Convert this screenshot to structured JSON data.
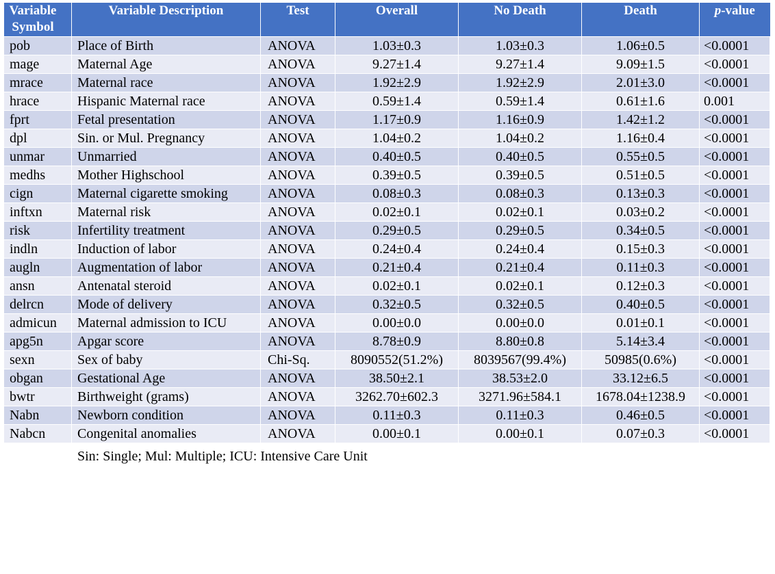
{
  "table": {
    "headers": {
      "symbol_line1": "Variable",
      "symbol_line2": "Symbol",
      "description": "Variable Description",
      "test": "Test",
      "overall": "Overall",
      "no_death": "No Death",
      "death": "Death",
      "pvalue_italic": "p",
      "pvalue_rest": "-value"
    },
    "rows": [
      {
        "symbol": "pob",
        "description": "Place of Birth",
        "test": "ANOVA",
        "overall": "1.03±0.3",
        "no_death": "1.03±0.3",
        "death": "1.06±0.5",
        "p": "<0.0001"
      },
      {
        "symbol": "mage",
        "description": "Maternal Age",
        "test": "ANOVA",
        "overall": "9.27±1.4",
        "no_death": "9.27±1.4",
        "death": "9.09±1.5",
        "p": "<0.0001"
      },
      {
        "symbol": "mrace",
        "description": "Maternal race",
        "test": "ANOVA",
        "overall": "1.92±2.9",
        "no_death": "1.92±2.9",
        "death": "2.01±3.0",
        "p": "<0.0001"
      },
      {
        "symbol": "hrace",
        "description": "Hispanic Maternal race",
        "test": "ANOVA",
        "overall": "0.59±1.4",
        "no_death": "0.59±1.4",
        "death": "0.61±1.6",
        "p": "0.001"
      },
      {
        "symbol": "fprt",
        "description": "Fetal presentation",
        "test": "ANOVA",
        "overall": "1.17±0.9",
        "no_death": "1.16±0.9",
        "death": "1.42±1.2",
        "p": "<0.0001"
      },
      {
        "symbol": "dpl",
        "description": "Sin. or Mul. Pregnancy",
        "test": "ANOVA",
        "overall": "1.04±0.2",
        "no_death": "1.04±0.2",
        "death": "1.16±0.4",
        "p": "<0.0001"
      },
      {
        "symbol": "unmar",
        "description": "Unmarried",
        "test": "ANOVA",
        "overall": "0.40±0.5",
        "no_death": "0.40±0.5",
        "death": "0.55±0.5",
        "p": "<0.0001"
      },
      {
        "symbol": "medhs",
        "description": "Mother Highschool",
        "test": "ANOVA",
        "overall": "0.39±0.5",
        "no_death": "0.39±0.5",
        "death": "0.51±0.5",
        "p": "<0.0001"
      },
      {
        "symbol": "cign",
        "description": "Maternal cigarette smoking",
        "test": "ANOVA",
        "overall": "0.08±0.3",
        "no_death": "0.08±0.3",
        "death": "0.13±0.3",
        "p": "<0.0001"
      },
      {
        "symbol": "inftxn",
        "description": "Maternal risk",
        "test": "ANOVA",
        "overall": "0.02±0.1",
        "no_death": "0.02±0.1",
        "death": "0.03±0.2",
        "p": "<0.0001"
      },
      {
        "symbol": "risk",
        "description": "Infertility treatment",
        "test": "ANOVA",
        "overall": "0.29±0.5",
        "no_death": "0.29±0.5",
        "death": "0.34±0.5",
        "p": "<0.0001"
      },
      {
        "symbol": "indln",
        "description": "Induction of labor",
        "test": "ANOVA",
        "overall": "0.24±0.4",
        "no_death": "0.24±0.4",
        "death": "0.15±0.3",
        "p": "<0.0001"
      },
      {
        "symbol": "augln",
        "description": "Augmentation of labor",
        "test": "ANOVA",
        "overall": "0.21±0.4",
        "no_death": "0.21±0.4",
        "death": "0.11±0.3",
        "p": "<0.0001"
      },
      {
        "symbol": "ansn",
        "description": "Antenatal steroid",
        "test": "ANOVA",
        "overall": "0.02±0.1",
        "no_death": "0.02±0.1",
        "death": "0.12±0.3",
        "p": "<0.0001"
      },
      {
        "symbol": "delrcn",
        "description": "Mode of delivery",
        "test": "ANOVA",
        "overall": "0.32±0.5",
        "no_death": "0.32±0.5",
        "death": "0.40±0.5",
        "p": "<0.0001"
      },
      {
        "symbol": "admicun",
        "description": "Maternal admission to ICU",
        "test": "ANOVA",
        "overall": "0.00±0.0",
        "no_death": "0.00±0.0",
        "death": "0.01±0.1",
        "p": "<0.0001"
      },
      {
        "symbol": "apg5n",
        "description": "Apgar score",
        "test": "ANOVA",
        "overall": "8.78±0.9",
        "no_death": "8.80±0.8",
        "death": "5.14±3.4",
        "p": "<0.0001"
      },
      {
        "symbol": "sexn",
        "description": "Sex of baby",
        "test": "Chi-Sq.",
        "overall": "8090552(51.2%)",
        "no_death": "8039567(99.4%)",
        "death": "50985(0.6%)",
        "p": "<0.0001"
      },
      {
        "symbol": "obgan",
        "description": "Gestational Age",
        "test": "ANOVA",
        "overall": "38.50±2.1",
        "no_death": "38.53±2.0",
        "death": "33.12±6.5",
        "p": "<0.0001"
      },
      {
        "symbol": "bwtr",
        "description": "Birthweight (grams)",
        "test": "ANOVA",
        "overall": "3262.70±602.3",
        "no_death": "3271.96±584.1",
        "death": "1678.04±1238.9",
        "p": "<0.0001"
      },
      {
        "symbol": "Nabn",
        "description": "Newborn condition",
        "test": "ANOVA",
        "overall": "0.11±0.3",
        "no_death": "0.11±0.3",
        "death": "0.46±0.5",
        "p": "<0.0001"
      },
      {
        "symbol": "Nabcn",
        "description": "Congenital anomalies",
        "test": "ANOVA",
        "overall": "0.00±0.1",
        "no_death": "0.00±0.1",
        "death": "0.07±0.3",
        "p": "<0.0001"
      }
    ]
  },
  "footnote": "Sin: Single; Mul: Multiple; ICU: Intensive Care Unit",
  "colors": {
    "header_bg": "#4472C4",
    "row_dark": "#CFD5EA",
    "row_light": "#E9EBF5"
  }
}
